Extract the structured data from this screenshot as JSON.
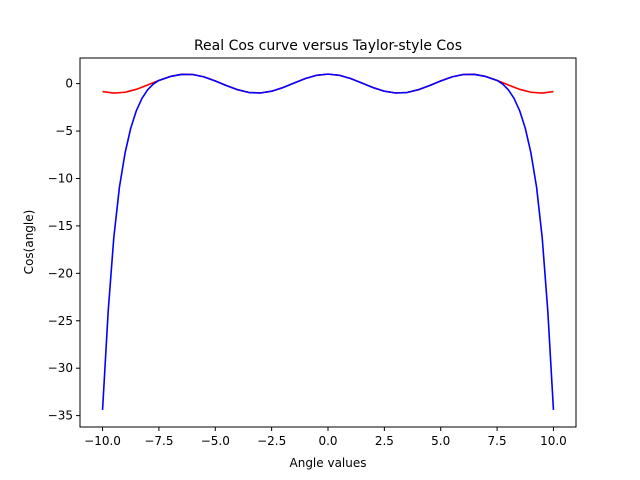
{
  "chart_data": {
    "type": "line",
    "title": "Real Cos curve versus Taylor-style Cos",
    "xlabel": "Angle values",
    "ylabel": "Cos(angle)",
    "xlim": [
      -11.0,
      11.0
    ],
    "ylim": [
      -36.2,
      2.7
    ],
    "xticks": [
      -10.0,
      -7.5,
      -5.0,
      -2.5,
      0.0,
      2.5,
      5.0,
      7.5,
      10.0
    ],
    "xtick_labels": [
      "−10.0",
      "−7.5",
      "−5.0",
      "−2.5",
      "0.0",
      "2.5",
      "5.0",
      "7.5",
      "10.0"
    ],
    "yticks": [
      0,
      -5,
      -10,
      -15,
      -20,
      -25,
      -30,
      -35
    ],
    "ytick_labels": [
      "0",
      "−5",
      "−10",
      "−15",
      "−20",
      "−25",
      "−30",
      "−35"
    ],
    "grid": false,
    "legend": "none",
    "colors": {
      "cos": "#ff0000",
      "taylor": "#0000ff"
    },
    "series": [
      {
        "color": "#ff0000",
        "x": [
          -10,
          -9.5,
          -9,
          -8.5,
          -8,
          -7.5,
          -7,
          -6.5,
          -6,
          -5.5,
          -5,
          -4.5,
          -4,
          -3.5,
          -3,
          -2.5,
          -2,
          -1.5,
          -1,
          -0.5,
          0,
          0.5,
          1,
          1.5,
          2,
          2.5,
          3,
          3.5,
          4,
          4.5,
          5,
          5.5,
          6,
          6.5,
          7,
          7.5,
          8,
          8.5,
          9,
          9.5,
          10
        ],
        "y": [
          -0.839,
          -0.997,
          -0.911,
          -0.602,
          -0.146,
          0.347,
          0.754,
          0.977,
          0.96,
          0.709,
          0.284,
          -0.211,
          -0.654,
          -0.936,
          -0.99,
          -0.801,
          -0.416,
          0.071,
          0.54,
          0.878,
          1.0,
          0.878,
          0.54,
          0.071,
          -0.416,
          -0.801,
          -0.99,
          -0.936,
          -0.654,
          -0.211,
          0.284,
          0.709,
          0.96,
          0.977,
          0.754,
          0.347,
          -0.146,
          -0.602,
          -0.911,
          -0.997,
          -0.839
        ]
      },
      {
        "color": "#0000ff",
        "x": [
          -10,
          -9.75,
          -9.5,
          -9.25,
          -9,
          -8.75,
          -8.5,
          -8.25,
          -8,
          -7.75,
          -7.5,
          -7,
          -6.5,
          -6,
          -5.5,
          -5,
          -4.5,
          -4,
          -3.5,
          -3,
          -2.5,
          -2,
          -1.5,
          -1,
          -0.5,
          0,
          0.5,
          1,
          1.5,
          2,
          2.5,
          3,
          3.5,
          4,
          4.5,
          5,
          5.5,
          6,
          6.5,
          7,
          7.5,
          7.75,
          8,
          8.25,
          8.5,
          8.75,
          9,
          9.25,
          9.5,
          9.75,
          10
        ],
        "y": [
          -34.4,
          -24.0,
          -16.2,
          -10.9,
          -7.3,
          -4.7,
          -2.85,
          -1.55,
          -0.65,
          -0.05,
          0.33,
          0.74,
          0.97,
          0.96,
          0.71,
          0.28,
          -0.21,
          -0.65,
          -0.94,
          -0.99,
          -0.8,
          -0.42,
          0.07,
          0.54,
          0.88,
          1.0,
          0.88,
          0.54,
          0.07,
          -0.42,
          -0.8,
          -0.99,
          -0.94,
          -0.65,
          -0.21,
          0.28,
          0.71,
          0.96,
          0.97,
          0.74,
          0.33,
          -0.05,
          -0.65,
          -1.55,
          -2.85,
          -4.7,
          -7.3,
          -10.9,
          -16.2,
          -24.0,
          -34.4
        ]
      }
    ]
  }
}
